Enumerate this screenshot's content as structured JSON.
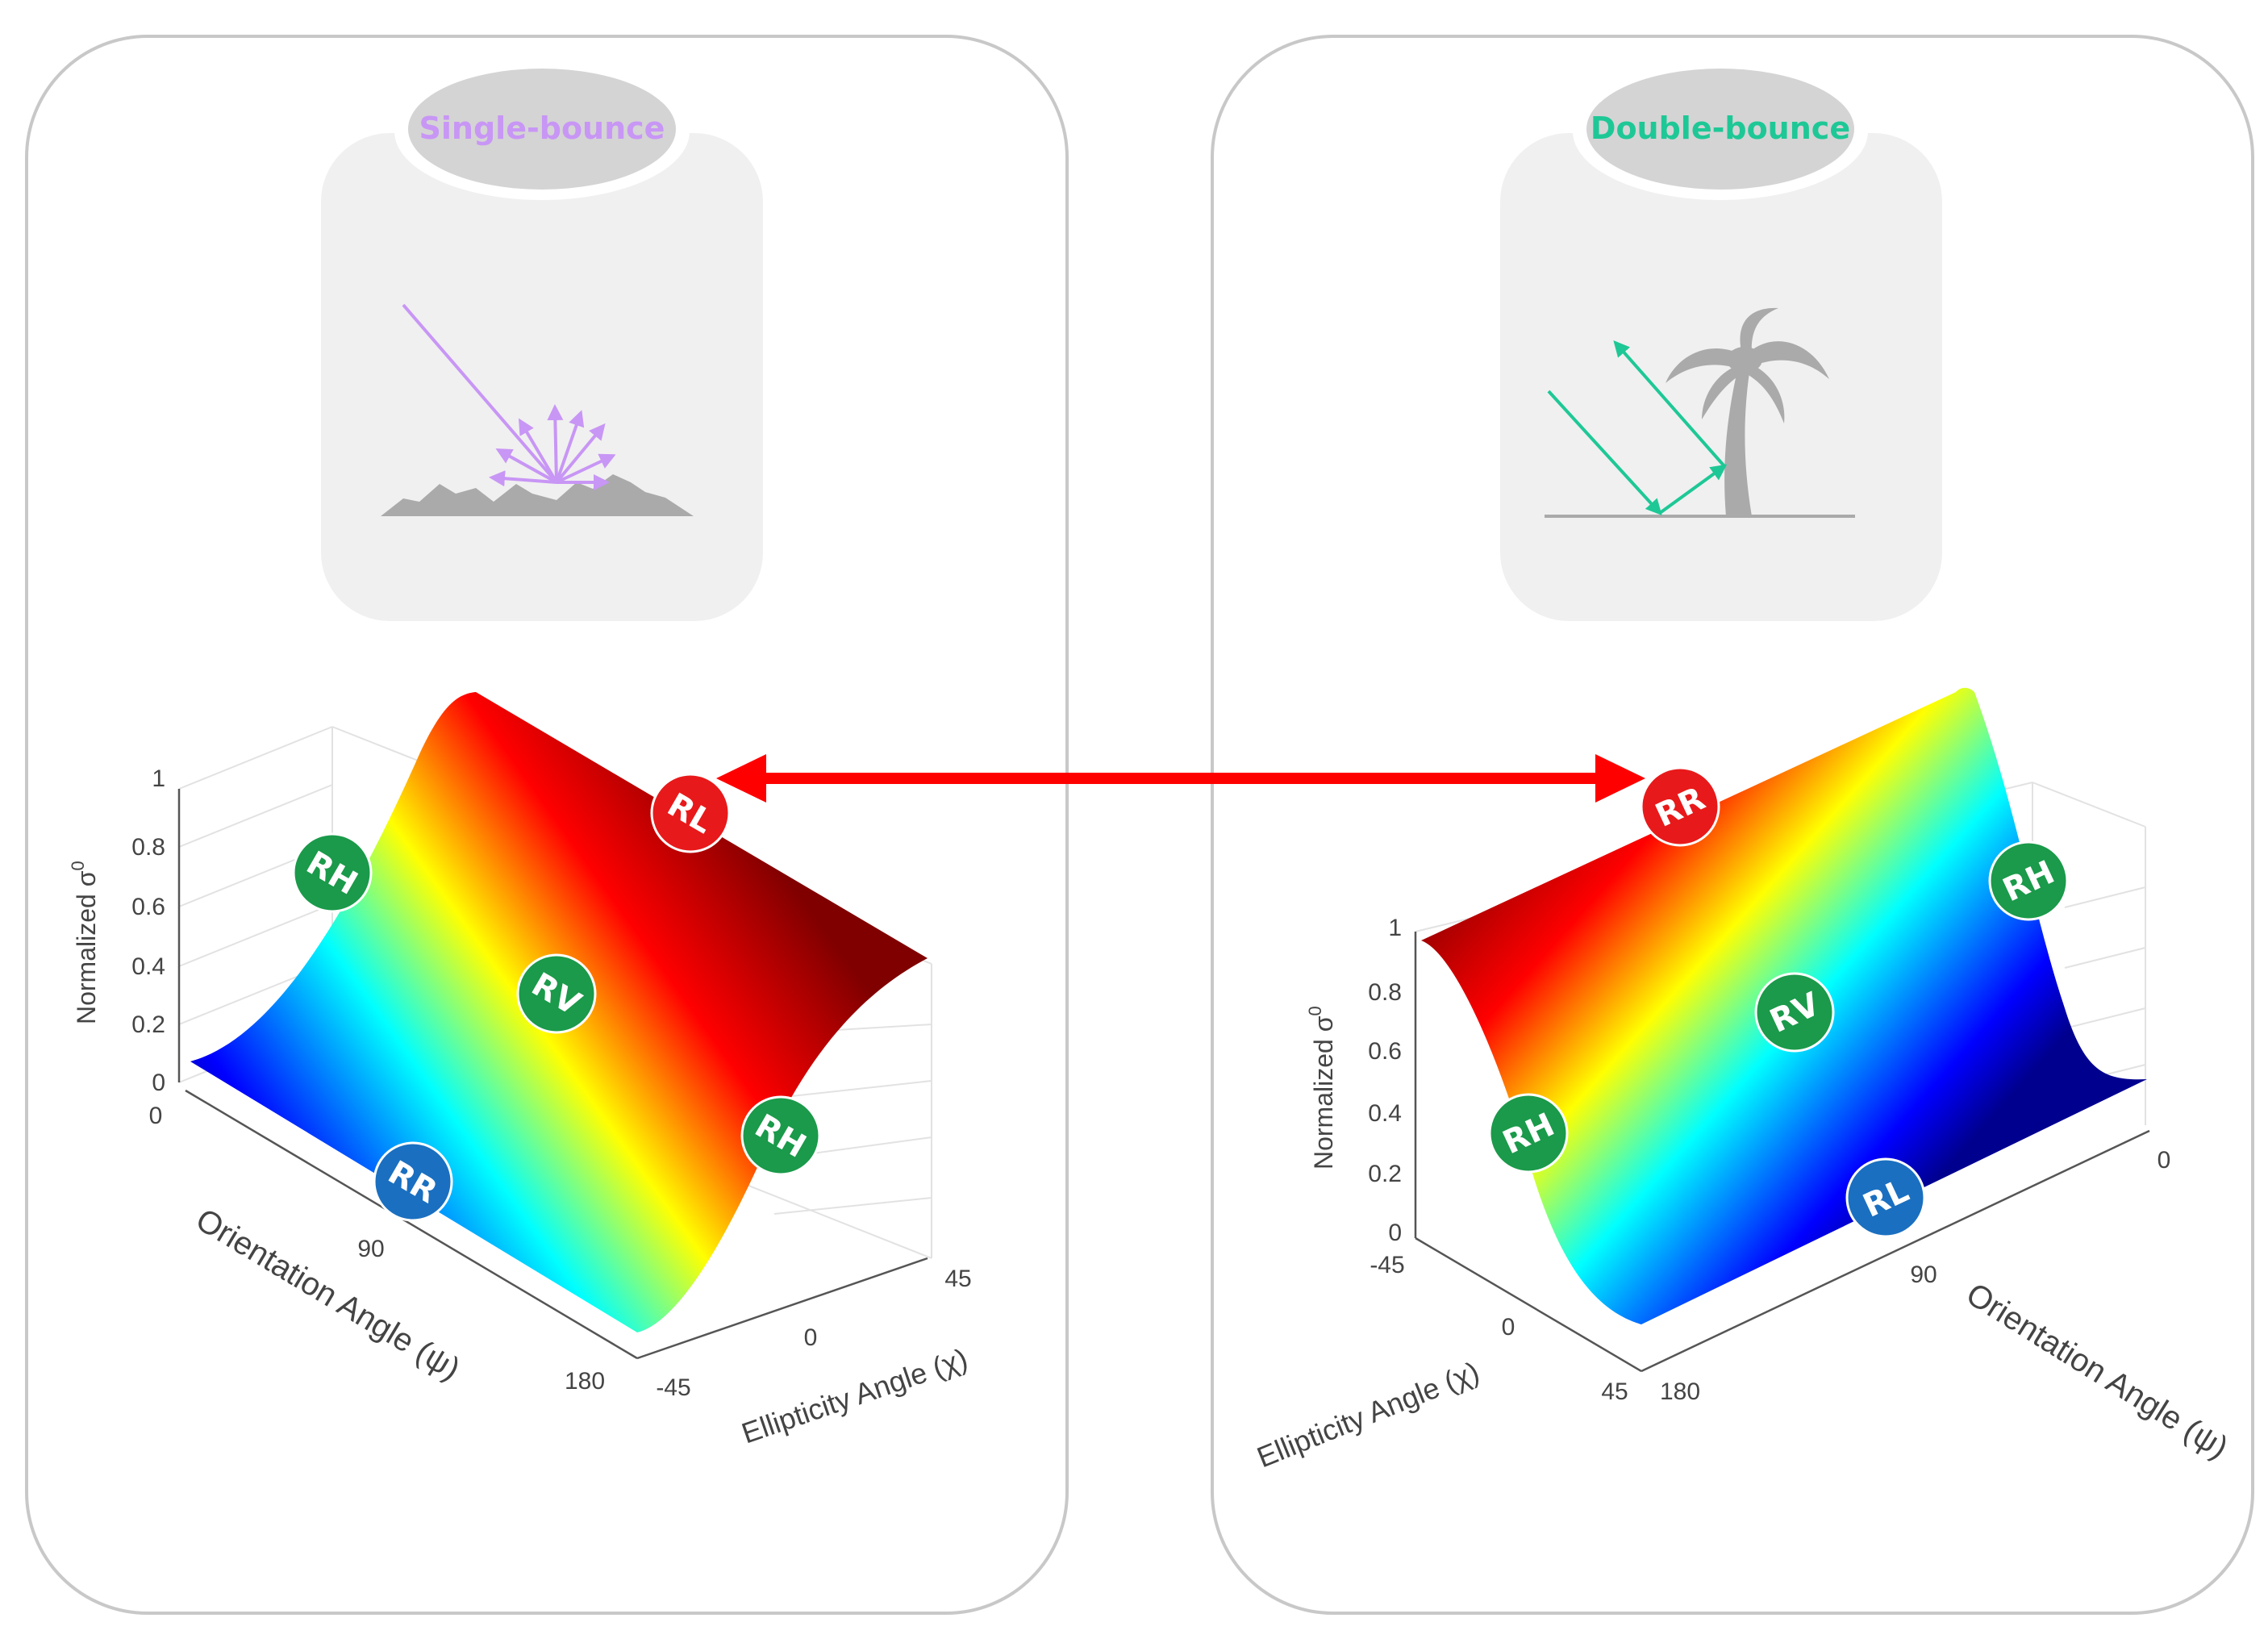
{
  "colors": {
    "single_bounce": "#c896f5",
    "double_bounce": "#1ec896",
    "tag_green": "#1a9a4a",
    "tag_red": "#e8191a",
    "tag_blue": "#1a6fc0",
    "arrow_red": "#ff0000",
    "ground_gray": "#aaaaaa",
    "panel_border": "#c8c8c8",
    "card_fill": "#f0f0f0"
  },
  "colormap": "jet",
  "left_panel": {
    "title": "Single-bounce",
    "icon": "rough-surface-scatter-icon",
    "chart": {
      "zlabel": "Normalized σ",
      "zlabel_sup": "0",
      "z_ticks": [
        "0",
        "0.2",
        "0.4",
        "0.6",
        "0.8",
        "1"
      ],
      "xlabel": "Orientation Angle (ψ)",
      "x_ticks": [
        "0",
        "90",
        "180"
      ],
      "ylabel": "Ellipticity Angle (χ)",
      "y_ticks": [
        "-45",
        "0",
        "45"
      ],
      "tags": [
        "RH",
        "RV",
        "RH",
        "RR",
        "RL"
      ]
    }
  },
  "right_panel": {
    "title": "Double-bounce",
    "icon": "palm-tree-double-bounce-icon",
    "chart": {
      "zlabel": "Normalized σ",
      "zlabel_sup": "0",
      "z_ticks": [
        "0",
        "0.2",
        "0.4",
        "0.6",
        "0.8",
        "1"
      ],
      "xlabel": "Orientation Angle (ψ)",
      "x_ticks": [
        "0",
        "90",
        "180"
      ],
      "ylabel": "Ellipticity Angle (χ)",
      "y_ticks": [
        "-45",
        "0",
        "45"
      ],
      "tags": [
        "RH",
        "RV",
        "RH",
        "RL",
        "RR"
      ]
    }
  }
}
